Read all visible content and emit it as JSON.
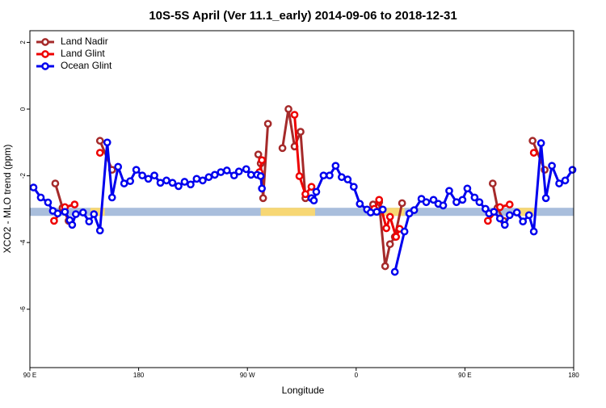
{
  "chart_data": {
    "type": "line",
    "title": "10S-5S April (Ver 11.1_early)   2014-09-06 to 2018-12-31",
    "x_label": "Longitude",
    "y_label": "XCO2 - MLO trend (ppm)",
    "xlim": [
      90,
      540
    ],
    "ylim": [
      -7.75,
      2.35
    ],
    "xticks": [
      {
        "value": 90,
        "label": "90 E"
      },
      180,
      {
        "value": 270,
        "label": "90 W"
      },
      {
        "value": 360,
        "label": "0"
      },
      {
        "value": 450,
        "label": "90 E"
      },
      {
        "value": 540,
        "label": "180"
      }
    ],
    "yticks": [
      2,
      0,
      -2,
      -4,
      -6
    ],
    "legend": "top-left",
    "band": {
      "y": -3.08,
      "ocean_color": "#a9bedc",
      "land_color": "#f7d774",
      "land_segments": [
        [
          140,
          152
        ],
        [
          281,
          326
        ],
        [
          380,
          400
        ],
        [
          493,
          507
        ]
      ]
    },
    "series": [
      {
        "name": "Land Nadir",
        "color": "#a52a2a",
        "x": [
          111,
          117,
          122,
          null,
          148,
          158,
          null,
          279,
          281,
          283,
          287,
          null,
          299,
          304,
          309,
          314,
          318,
          null,
          374,
          379,
          384,
          388,
          392,
          398,
          null,
          473,
          477,
          482,
          null,
          506,
          516
        ],
        "values": [
          -2.23,
          -2.96,
          -3.35,
          null,
          -0.95,
          -1.82,
          null,
          -1.36,
          -1.63,
          -2.67,
          -0.44,
          null,
          -1.17,
          0,
          -1.12,
          -0.68,
          -2.67,
          null,
          -2.86,
          -2.79,
          -4.71,
          -4.05,
          -3.83,
          -2.82,
          null,
          -2.23,
          -2.96,
          -3.35,
          null,
          -0.95,
          -1.82
        ]
      },
      {
        "name": "Land Glint",
        "color": "#ee0000",
        "x": [
          110,
          119,
          127,
          null,
          148,
          null,
          280,
          282,
          null,
          309,
          313,
          318,
          323,
          null,
          375,
          379,
          385,
          388,
          393,
          396,
          null,
          469,
          479,
          487,
          null,
          507
        ],
        "values": [
          -3.35,
          -2.94,
          -2.86,
          null,
          -1.31,
          null,
          -1.89,
          -1.53,
          null,
          -0.17,
          -2.01,
          -2.55,
          -2.33,
          null,
          -2.99,
          -2.72,
          -3.57,
          -3.23,
          -3.83,
          -3.59,
          null,
          -3.35,
          -2.94,
          -2.86,
          null,
          -1.31
        ]
      },
      {
        "name": "Ocean Glint",
        "color": "#0000ee",
        "x": [
          93,
          99,
          105,
          109,
          113,
          119,
          123,
          125,
          128,
          134,
          139,
          143,
          148,
          154,
          158,
          163,
          168,
          173,
          178,
          183,
          188,
          193,
          198,
          203,
          208,
          213,
          218,
          223,
          228,
          233,
          238,
          243,
          248,
          253,
          259,
          263,
          269,
          273,
          278,
          281,
          282,
          null,
          323,
          325,
          327,
          333,
          338,
          343,
          348,
          353,
          358,
          363,
          369,
          372,
          377,
          382,
          null,
          392,
          400,
          404,
          408,
          414,
          418,
          424,
          428,
          432,
          437,
          443,
          448,
          452,
          458,
          462,
          467,
          470,
          474,
          479,
          483,
          487,
          493,
          498,
          503,
          507,
          513,
          517,
          522,
          528,
          533,
          539
        ],
        "values": [
          -2.35,
          -2.65,
          -2.8,
          -3.05,
          -3.13,
          -3.08,
          -3.33,
          -3.47,
          -3.15,
          -3.1,
          -3.37,
          -3.15,
          -3.64,
          -1.0,
          -2.65,
          -1.73,
          -2.23,
          -2.16,
          -1.82,
          -1.99,
          -2.09,
          -1.99,
          -2.21,
          -2.14,
          -2.21,
          -2.31,
          -2.18,
          -2.26,
          -2.09,
          -2.14,
          -2.04,
          -1.97,
          -1.89,
          -1.84,
          -1.99,
          -1.87,
          -1.8,
          -1.97,
          -1.97,
          -2.01,
          -2.38,
          null,
          -2.67,
          -2.74,
          -2.48,
          -1.99,
          -1.99,
          -1.7,
          -2.04,
          -2.11,
          -2.33,
          -2.84,
          -3.01,
          -3.1,
          -3.08,
          -3.01,
          null,
          -4.88,
          -3.67,
          -3.13,
          -3.03,
          -2.69,
          -2.79,
          -2.72,
          -2.84,
          -2.89,
          -2.45,
          -2.79,
          -2.72,
          -2.38,
          -2.65,
          -2.79,
          -2.99,
          -3.13,
          -3.08,
          -3.28,
          -3.47,
          -3.18,
          -3.1,
          -3.37,
          -3.18,
          -3.67,
          -1.02,
          -2.67,
          -1.7,
          -2.23,
          -2.14,
          -1.82
        ]
      }
    ]
  }
}
